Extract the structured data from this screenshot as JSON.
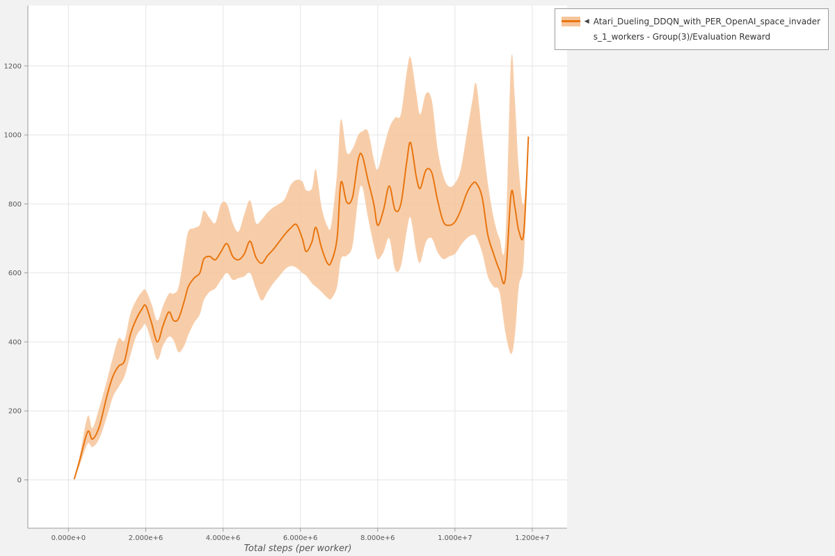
{
  "legend": {
    "marker": "◀",
    "line1": "Atari_Dueling_DDQN_with_PER_OpenAI_space_invader",
    "line2": "s_1_workers - Group(3)/Evaluation Reward"
  },
  "chart_data": {
    "type": "line",
    "title": "",
    "xlabel": "Total steps (per worker)",
    "ylabel": "",
    "grid": true,
    "legend_position": "top-right",
    "xlim": [
      -1050000,
      12900000
    ],
    "ylim": [
      -140,
      1375
    ],
    "x_ticks": {
      "values": [
        0,
        2000000,
        4000000,
        6000000,
        8000000,
        10000000,
        12000000
      ],
      "labels": [
        "0.000e+0",
        "2.000e+6",
        "4.000e+6",
        "6.000e+6",
        "8.000e+6",
        "1.000e+7",
        "1.200e+7"
      ]
    },
    "y_ticks": {
      "values": [
        0,
        200,
        400,
        600,
        800,
        1000,
        1200
      ],
      "labels": [
        "0",
        "200",
        "400",
        "600",
        "800",
        "1000",
        "1200"
      ]
    },
    "series": [
      {
        "name": "Atari_Dueling_DDQN_with_PER_OpenAI_space_invaders_1_workers - Group(3)/Evaluation Reward",
        "color": "#e8740e",
        "band_color": "#f6c49a",
        "x_scale": 1000000,
        "x": [
          0.15,
          0.3,
          0.5,
          0.62,
          0.8,
          1.0,
          1.15,
          1.3,
          1.45,
          1.6,
          1.75,
          1.9,
          2.0,
          2.15,
          2.3,
          2.45,
          2.6,
          2.72,
          2.85,
          3.0,
          3.1,
          3.25,
          3.4,
          3.5,
          3.65,
          3.8,
          3.95,
          4.1,
          4.25,
          4.4,
          4.55,
          4.7,
          4.85,
          5.0,
          5.15,
          5.3,
          5.45,
          5.6,
          5.75,
          5.9,
          6.05,
          6.15,
          6.3,
          6.4,
          6.55,
          6.7,
          6.8,
          6.95,
          7.05,
          7.2,
          7.35,
          7.5,
          7.6,
          7.75,
          7.9,
          8.0,
          8.15,
          8.3,
          8.45,
          8.6,
          8.75,
          8.85,
          9.0,
          9.1,
          9.25,
          9.4,
          9.55,
          9.7,
          9.85,
          10.0,
          10.15,
          10.3,
          10.45,
          10.55,
          10.7,
          10.85,
          11.0,
          11.15,
          11.3,
          11.45,
          11.55,
          11.65,
          11.78,
          11.9
        ],
        "mean": [
          2,
          60,
          140,
          118,
          155,
          245,
          300,
          330,
          345,
          420,
          465,
          495,
          505,
          455,
          400,
          448,
          487,
          462,
          468,
          520,
          560,
          585,
          600,
          640,
          648,
          638,
          662,
          685,
          648,
          638,
          655,
          692,
          645,
          628,
          650,
          668,
          690,
          712,
          730,
          740,
          700,
          662,
          690,
          732,
          672,
          628,
          632,
          700,
          862,
          805,
          820,
          930,
          940,
          868,
          800,
          738,
          782,
          852,
          782,
          800,
          920,
          978,
          878,
          845,
          898,
          890,
          810,
          748,
          738,
          748,
          782,
          830,
          858,
          860,
          820,
          710,
          655,
          608,
          582,
          828,
          790,
          722,
          718,
          995
        ],
        "lower": [
          2,
          45,
          105,
          95,
          120,
          185,
          240,
          270,
          300,
          360,
          415,
          440,
          450,
          400,
          348,
          390,
          415,
          405,
          370,
          390,
          420,
          455,
          480,
          520,
          545,
          555,
          580,
          600,
          580,
          585,
          590,
          600,
          555,
          520,
          545,
          570,
          590,
          610,
          620,
          615,
          600,
          592,
          570,
          560,
          545,
          528,
          525,
          560,
          640,
          650,
          680,
          820,
          850,
          760,
          680,
          640,
          660,
          700,
          610,
          620,
          720,
          760,
          660,
          630,
          690,
          700,
          660,
          640,
          648,
          655,
          680,
          700,
          710,
          705,
          660,
          590,
          560,
          545,
          430,
          365,
          420,
          560,
          640,
          995
        ],
        "upper": [
          2,
          75,
          185,
          150,
          210,
          290,
          355,
          410,
          405,
          480,
          520,
          545,
          550,
          510,
          462,
          505,
          540,
          540,
          560,
          660,
          720,
          730,
          740,
          780,
          760,
          745,
          800,
          800,
          745,
          720,
          770,
          810,
          745,
          755,
          775,
          790,
          800,
          815,
          855,
          870,
          865,
          840,
          845,
          900,
          790,
          735,
          740,
          890,
          1045,
          950,
          960,
          1000,
          1010,
          1010,
          930,
          900,
          960,
          1020,
          1050,
          1060,
          1180,
          1225,
          1120,
          1060,
          1120,
          1100,
          960,
          880,
          850,
          860,
          900,
          1000,
          1100,
          1148,
          1000,
          860,
          760,
          700,
          690,
          1215,
          1100,
          900,
          800,
          995
        ]
      }
    ]
  }
}
